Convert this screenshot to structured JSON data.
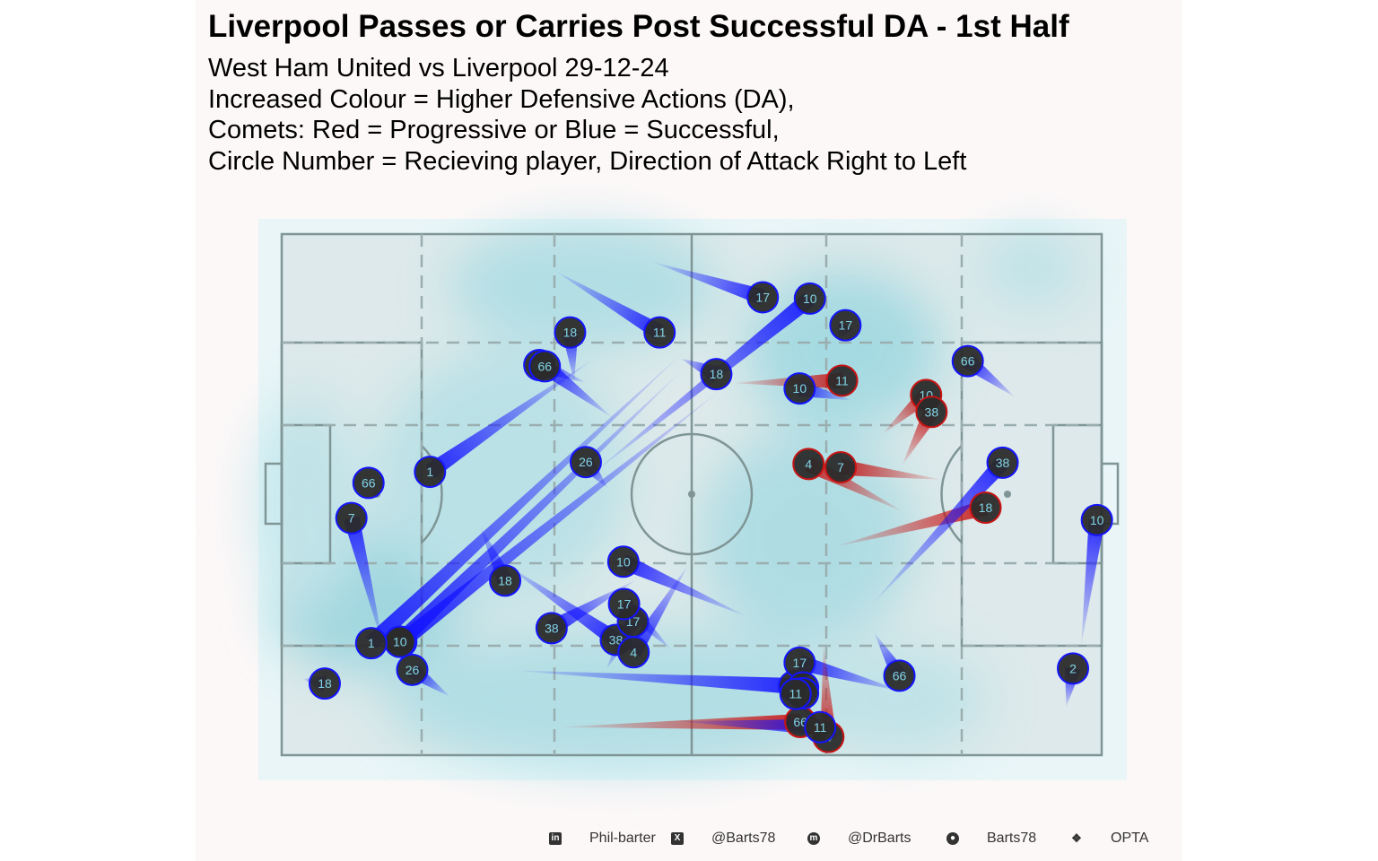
{
  "title": "Liverpool Passes or Carries Post Successful DA - 1st Half",
  "subtitle_lines": [
    "West Ham United vs Liverpool 29-12-24",
    "Increased Colour = Higher Defensive Actions (DA),",
    "Comets: Red = Progressive or Blue = Successful,",
    "Circle Number = Recieving player, Direction of Attack Right to Left"
  ],
  "footer": [
    {
      "icon": "linkedin-icon",
      "text": "Phil-barter"
    },
    {
      "icon": "x-twitter-icon",
      "text": "@Barts78"
    },
    {
      "icon": "mastodon-icon",
      "text": "@DrBarts"
    },
    {
      "icon": "github-icon",
      "text": "Barts78"
    },
    {
      "icon": "dropbox-icon",
      "text": "OPTA"
    }
  ],
  "colors": {
    "progressive": "#c81414",
    "successful": "#1414ff",
    "density": "#7fcfdc",
    "pitch_bg": "#dde9ea",
    "node_fill": "#2b2b2b",
    "node_text": "#7fd3e6"
  },
  "chart_data": {
    "type": "scatter",
    "x_range": [
      0,
      120
    ],
    "y_range": [
      0,
      80
    ],
    "comets": [
      {
        "x0": 54.3,
        "y0": 75.7,
        "x1": 70.4,
        "y1": 70.3,
        "type": "successful",
        "player": "17"
      },
      {
        "x0": 40.1,
        "y0": 74.3,
        "x1": 55.3,
        "y1": 64.9,
        "type": "successful",
        "player": "11"
      },
      {
        "x0": 45.6,
        "y0": 43.3,
        "x1": 77.3,
        "y1": 70.1,
        "type": "successful",
        "player": "10"
      },
      {
        "x0": 81.4,
        "y0": 63.7,
        "x1": 82.5,
        "y1": 66.0,
        "type": "successful",
        "player": "17"
      },
      {
        "x0": 42.8,
        "y0": 57.3,
        "x1": 42.2,
        "y1": 64.9,
        "type": "successful",
        "player": "18"
      },
      {
        "x0": 58.4,
        "y0": 60.9,
        "x1": 63.6,
        "y1": 58.5,
        "type": "successful",
        "player": "18"
      },
      {
        "x0": 66.1,
        "y0": 57.1,
        "x1": 82.0,
        "y1": 57.5,
        "type": "progressive",
        "player": "11"
      },
      {
        "x0": 83.4,
        "y0": 54.5,
        "x1": 75.8,
        "y1": 56.3,
        "type": "successful",
        "player": "10"
      },
      {
        "x0": 87.9,
        "y0": 49.3,
        "x1": 94.3,
        "y1": 55.3,
        "type": "progressive",
        "player": "10"
      },
      {
        "x0": 90.8,
        "y0": 44.5,
        "x1": 95.1,
        "y1": 52.7,
        "type": "progressive",
        "player": "38"
      },
      {
        "x0": 107.3,
        "y0": 55.0,
        "x1": 100.4,
        "y1": 60.5,
        "type": "successful",
        "player": "66"
      },
      {
        "x0": 44.5,
        "y0": 57.2,
        "x1": 37.7,
        "y1": 59.9,
        "type": "successful",
        "player": "66"
      },
      {
        "x0": 48.4,
        "y0": 51.8,
        "x1": 38.5,
        "y1": 59.7,
        "type": "successful",
        "player": "66"
      },
      {
        "x0": 64.3,
        "y0": 56.1,
        "x1": 17.5,
        "y1": 17.4,
        "type": "successful",
        "player": "10"
      },
      {
        "x0": 58.7,
        "y0": 59.2,
        "x1": 17.3,
        "y1": 17.4,
        "type": "successful",
        "player": "10"
      },
      {
        "x0": 58.8,
        "y0": 61.9,
        "x1": 13.1,
        "y1": 17.2,
        "type": "successful",
        "player": "1"
      },
      {
        "x0": 45.6,
        "y0": 60.8,
        "x1": 21.7,
        "y1": 43.5,
        "type": "successful",
        "player": "1"
      },
      {
        "x0": 12.7,
        "y0": 41.8,
        "x1": 12.7,
        "y1": 41.8,
        "type": "successful",
        "player": "66"
      },
      {
        "x0": 47.7,
        "y0": 41.0,
        "x1": 44.5,
        "y1": 45.0,
        "type": "successful",
        "player": "26"
      },
      {
        "x0": 15.0,
        "y0": 16.2,
        "x1": 10.2,
        "y1": 36.4,
        "type": "successful",
        "player": "7"
      },
      {
        "x0": 90.9,
        "y0": 37.4,
        "x1": 77.1,
        "y1": 44.7,
        "type": "progressive",
        "player": "4"
      },
      {
        "x0": 96.5,
        "y0": 42.3,
        "x1": 81.8,
        "y1": 44.2,
        "type": "progressive",
        "player": "7"
      },
      {
        "x0": 80.9,
        "y0": 32.0,
        "x1": 103.0,
        "y1": 38.0,
        "type": "progressive",
        "player": "18"
      },
      {
        "x0": 86.7,
        "y0": 23.5,
        "x1": 105.5,
        "y1": 44.9,
        "type": "successful",
        "player": "38"
      },
      {
        "x0": 117.0,
        "y0": 16.9,
        "x1": 119.3,
        "y1": 36.1,
        "type": "successful",
        "player": "10"
      },
      {
        "x0": 114.8,
        "y0": 7.4,
        "x1": 115.8,
        "y1": 13.3,
        "type": "successful",
        "player": "2"
      },
      {
        "x0": 29.1,
        "y0": 35.0,
        "x1": 32.7,
        "y1": 26.8,
        "type": "successful",
        "player": "18"
      },
      {
        "x0": 68.0,
        "y0": 21.3,
        "x1": 50.0,
        "y1": 29.7,
        "type": "successful",
        "player": "10"
      },
      {
        "x0": 32.4,
        "y0": 29.5,
        "x1": 48.9,
        "y1": 17.7,
        "type": "successful",
        "player": "38"
      },
      {
        "x0": 51.9,
        "y0": 26.9,
        "x1": 39.5,
        "y1": 19.5,
        "type": "successful",
        "player": "38"
      },
      {
        "x0": 47.5,
        "y0": 13.2,
        "x1": 51.4,
        "y1": 20.5,
        "type": "successful",
        "player": "17"
      },
      {
        "x0": 57.0,
        "y0": 16.2,
        "x1": 50.1,
        "y1": 23.2,
        "type": "successful",
        "player": "17"
      },
      {
        "x0": 59.5,
        "y0": 29.2,
        "x1": 51.5,
        "y1": 15.8,
        "type": "successful",
        "player": "4"
      },
      {
        "x0": 34.2,
        "y0": 13.0,
        "x1": 75.0,
        "y1": 10.6,
        "type": "successful",
        "player": "4"
      },
      {
        "x0": 91.2,
        "y0": 9.7,
        "x1": 75.8,
        "y1": 14.2,
        "type": "successful",
        "player": "17"
      },
      {
        "x0": 86.7,
        "y0": 18.8,
        "x1": 90.4,
        "y1": 12.2,
        "type": "successful",
        "player": "66"
      },
      {
        "x0": 79.3,
        "y0": 17.0,
        "x1": 80.0,
        "y1": 2.8,
        "type": "progressive",
        "player": "4"
      },
      {
        "x0": 40.5,
        "y0": 4.3,
        "x1": 75.9,
        "y1": 5.1,
        "type": "progressive",
        "player": "66"
      },
      {
        "x0": 58.3,
        "y0": 5.2,
        "x1": 78.8,
        "y1": 4.3,
        "type": "successful",
        "player": "11"
      },
      {
        "x0": 78.1,
        "y0": 9.1,
        "x1": 76.3,
        "y1": 10.4,
        "type": "successful",
        "player": "10"
      },
      {
        "x0": 77.4,
        "y0": 5.0,
        "x1": 76.3,
        "y1": 9.5,
        "type": "successful",
        "player": "17"
      },
      {
        "x0": 77.6,
        "y0": 6.7,
        "x1": 75.2,
        "y1": 9.4,
        "type": "successful",
        "player": "11"
      },
      {
        "x0": 24.6,
        "y0": 9.0,
        "x1": 19.1,
        "y1": 13.1,
        "type": "successful",
        "player": "26"
      },
      {
        "x0": 3.2,
        "y0": 11.7,
        "x1": 6.3,
        "y1": 11.0,
        "type": "successful",
        "player": "18"
      }
    ]
  }
}
